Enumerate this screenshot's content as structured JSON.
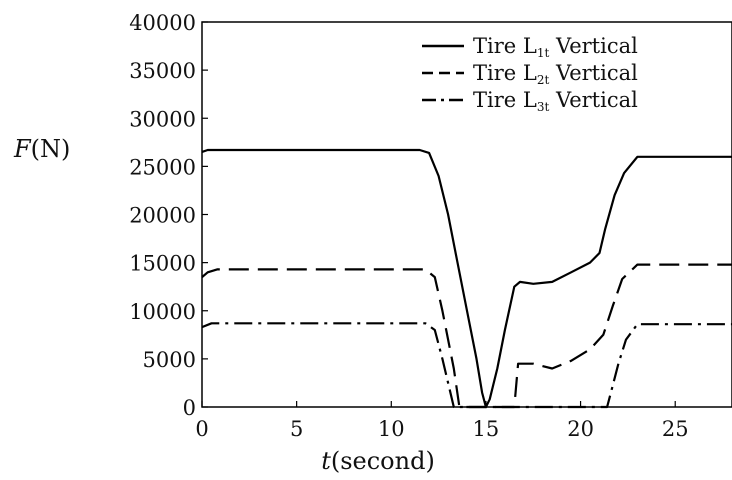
{
  "chart_data": {
    "type": "line",
    "title": "",
    "xlabel": {
      "var": "t",
      "rest": "(second)"
    },
    "ylabel": {
      "var": "F",
      "rest": "(N)"
    },
    "xlim": [
      0,
      28
    ],
    "ylim": [
      0,
      40000
    ],
    "xticks": [
      "0",
      "5",
      "10",
      "15",
      "20",
      "25"
    ],
    "yticks": [
      "0",
      "5000",
      "10000",
      "15000",
      "20000",
      "25000",
      "30000",
      "35000",
      "40000"
    ],
    "grid": false,
    "legend_position": "top-right",
    "series": [
      {
        "name": "Tire L1t Vertical",
        "legend": {
          "base": "Tire L",
          "sub": "1t",
          "rest": " Vertical"
        },
        "style": "solid",
        "color": "#000000",
        "points": [
          [
            0,
            26500
          ],
          [
            0.3,
            26700
          ],
          [
            11.5,
            26700
          ],
          [
            12,
            26400
          ],
          [
            12.5,
            24000
          ],
          [
            13,
            20000
          ],
          [
            13.5,
            15000
          ],
          [
            14,
            10000
          ],
          [
            14.5,
            5000
          ],
          [
            14.8,
            1500
          ],
          [
            15,
            0
          ],
          [
            15.2,
            800
          ],
          [
            15.6,
            4000
          ],
          [
            16,
            8000
          ],
          [
            16.5,
            12500
          ],
          [
            16.8,
            13000
          ],
          [
            17.5,
            12800
          ],
          [
            18.5,
            13000
          ],
          [
            19.5,
            14000
          ],
          [
            20.5,
            15000
          ],
          [
            21,
            16000
          ],
          [
            21.3,
            18500
          ],
          [
            21.8,
            22000
          ],
          [
            22.3,
            24300
          ],
          [
            23,
            26000
          ],
          [
            24,
            26000
          ],
          [
            28,
            26000
          ]
        ]
      },
      {
        "name": "Tire L2t Vertical",
        "legend": {
          "base": "Tire L",
          "sub": "2t",
          "rest": " Vertical"
        },
        "style": "dashed",
        "color": "#000000",
        "points": [
          [
            0,
            13500
          ],
          [
            0.3,
            14000
          ],
          [
            0.8,
            14300
          ],
          [
            11.8,
            14300
          ],
          [
            12.3,
            13500
          ],
          [
            12.7,
            10000
          ],
          [
            13,
            7000
          ],
          [
            13.3,
            4000
          ],
          [
            13.6,
            0
          ],
          [
            16.5,
            0
          ],
          [
            16.7,
            4500
          ],
          [
            17.5,
            4500
          ],
          [
            18.5,
            4000
          ],
          [
            19.5,
            4800
          ],
          [
            20.5,
            6000
          ],
          [
            21.2,
            7500
          ],
          [
            21.7,
            10500
          ],
          [
            22.2,
            13300
          ],
          [
            23,
            14800
          ],
          [
            28,
            14800
          ]
        ]
      },
      {
        "name": "Tire L3t Vertical",
        "legend": {
          "base": "Tire L",
          "sub": "3t",
          "rest": " Vertical"
        },
        "style": "dashdot",
        "color": "#000000",
        "points": [
          [
            0,
            8300
          ],
          [
            0.5,
            8700
          ],
          [
            11.8,
            8700
          ],
          [
            12.3,
            8000
          ],
          [
            12.7,
            5000
          ],
          [
            13,
            2500
          ],
          [
            13.3,
            0
          ],
          [
            21.4,
            0
          ],
          [
            21.6,
            1500
          ],
          [
            22,
            4500
          ],
          [
            22.4,
            7000
          ],
          [
            23,
            8600
          ],
          [
            28,
            8600
          ]
        ]
      }
    ]
  }
}
